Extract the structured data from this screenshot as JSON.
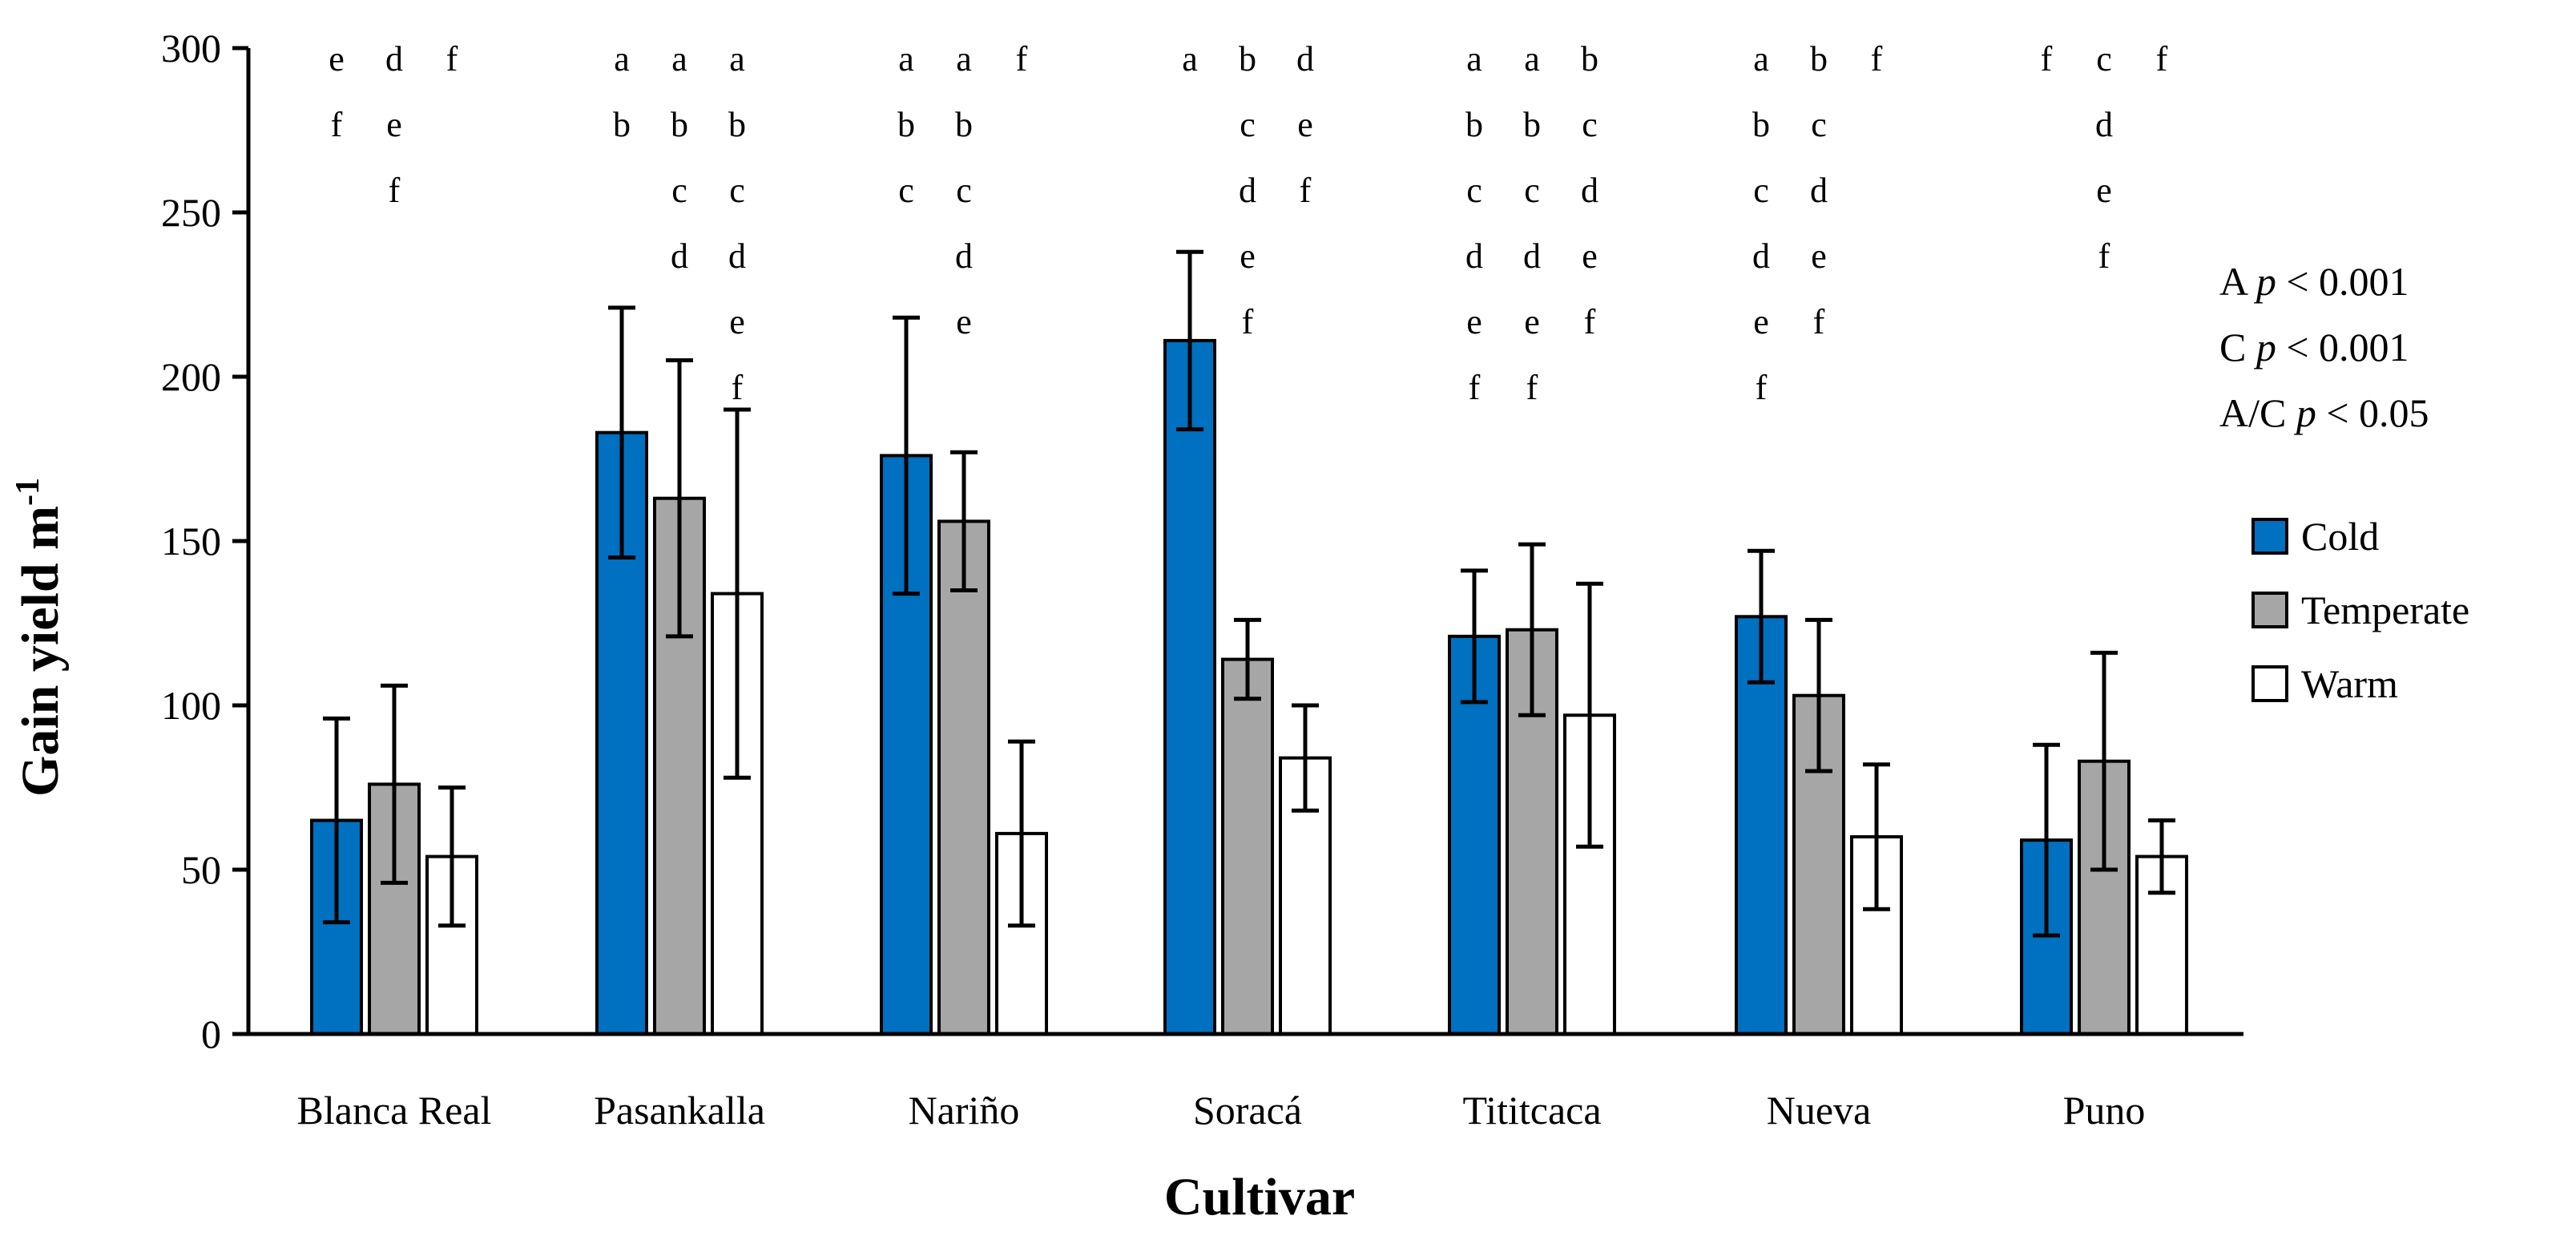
{
  "chart_data": {
    "type": "bar",
    "title": "",
    "xlabel": "Cultivar",
    "ylabel": "Gain yield m",
    "ylabel_superscript": "-1",
    "ylim": [
      0,
      300
    ],
    "yticks": [
      0,
      50,
      100,
      150,
      200,
      250,
      300
    ],
    "categories": [
      "Blanca Real",
      "Pasankalla",
      "Nariño",
      "Soracá",
      "Tititcaca",
      "Nueva",
      "Puno"
    ],
    "series": [
      {
        "name": "Cold",
        "color": "#0070C0",
        "values": [
          65,
          183,
          176,
          211,
          121,
          127,
          59
        ],
        "errors": [
          31,
          38,
          42,
          27,
          20,
          20,
          29
        ],
        "letters": [
          [
            "e",
            "f"
          ],
          [
            "a",
            "b"
          ],
          [
            "a",
            "b",
            "c"
          ],
          [
            "a"
          ],
          [
            "a",
            "b",
            "c",
            "d",
            "e",
            "f"
          ],
          [
            "a",
            "b",
            "c",
            "d",
            "e",
            "f"
          ],
          [
            "f"
          ]
        ]
      },
      {
        "name": "Temperate",
        "color": "#A6A6A6",
        "values": [
          76,
          163,
          156,
          114,
          123,
          103,
          83
        ],
        "errors": [
          30,
          42,
          21,
          12,
          26,
          23,
          33
        ],
        "letters": [
          [
            "d",
            "e",
            "f"
          ],
          [
            "a",
            "b",
            "c",
            "d"
          ],
          [
            "a",
            "b",
            "c",
            "d",
            "e"
          ],
          [
            "b",
            "c",
            "d",
            "e",
            "f"
          ],
          [
            "a",
            "b",
            "c",
            "d",
            "e",
            "f"
          ],
          [
            "b",
            "c",
            "d",
            "e",
            "f"
          ],
          [
            "c",
            "d",
            "e",
            "f"
          ]
        ]
      },
      {
        "name": "Warm",
        "color": "#FFFFFF",
        "values": [
          54,
          134,
          61,
          84,
          97,
          60,
          54
        ],
        "errors": [
          21,
          56,
          28,
          16,
          40,
          22,
          11
        ],
        "letters": [
          [
            "f"
          ],
          [
            "a",
            "b",
            "c",
            "d",
            "e",
            "f"
          ],
          [
            "f"
          ],
          [
            "d",
            "e",
            "f"
          ],
          [
            "b",
            "c",
            "d",
            "e",
            "f"
          ],
          [
            "f"
          ],
          [
            "f"
          ]
        ]
      }
    ],
    "stats": [
      {
        "label": "A",
        "p": "p",
        "rel": "< 0.001"
      },
      {
        "label": "C",
        "p": "p",
        "rel": "< 0.001"
      },
      {
        "label": "A/C",
        "p": "p",
        "rel": "< 0.05"
      }
    ],
    "legend_position": "right"
  }
}
